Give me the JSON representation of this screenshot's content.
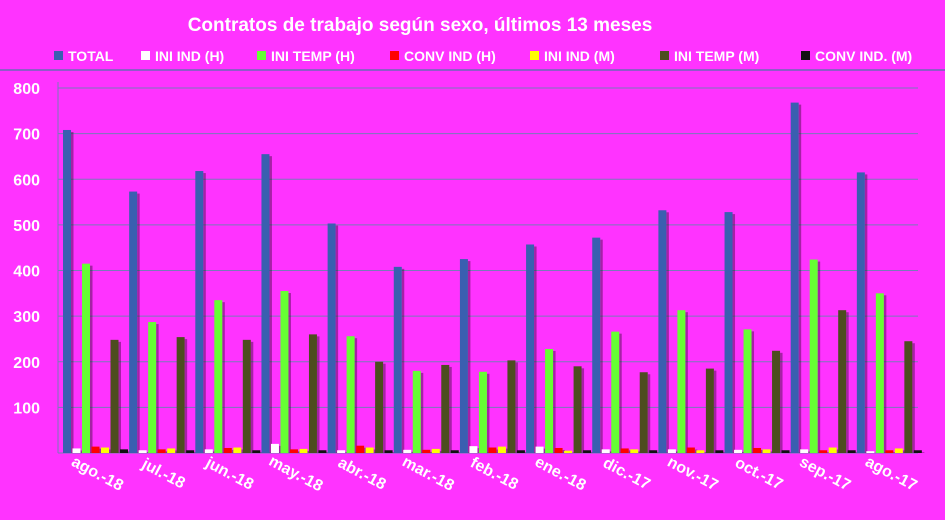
{
  "chart_data": {
    "type": "bar",
    "title": "Contratos de trabajo según sexo, últimos 13 meses",
    "xlabel": "",
    "ylabel": "",
    "ylim": [
      0,
      800
    ],
    "yticks": [
      100,
      200,
      300,
      400,
      500,
      600,
      700,
      800
    ],
    "grid": true,
    "legend_position": "top",
    "categories": [
      "ago.-18",
      "jul.-18",
      "jun.-18",
      "may.-18",
      "abr.-18",
      "mar.-18",
      "feb.-18",
      "ene.-18",
      "dic.-17",
      "nov.-17",
      "oct.-17",
      "sep.-17",
      "ago.-17"
    ],
    "series": [
      {
        "name": "TOTAL",
        "color": "#3a5fb0",
        "values": [
          708,
          573,
          618,
          655,
          503,
          408,
          425,
          457,
          472,
          532,
          528,
          768,
          615
        ]
      },
      {
        "name": "INI IND (H)",
        "color": "#ffffff",
        "values": [
          10,
          6,
          8,
          20,
          6,
          7,
          15,
          14,
          8,
          8,
          7,
          8,
          4
        ]
      },
      {
        "name": "INI TEMP (H)",
        "color": "#66ff33",
        "values": [
          415,
          287,
          335,
          355,
          256,
          180,
          178,
          228,
          266,
          313,
          271,
          424,
          350
        ]
      },
      {
        "name": "CONV IND (H)",
        "color": "#ff0000",
        "values": [
          14,
          8,
          11,
          8,
          16,
          7,
          12,
          11,
          10,
          12,
          11,
          6,
          6
        ]
      },
      {
        "name": "INI IND (M)",
        "color": "#ffff00",
        "values": [
          12,
          10,
          12,
          9,
          12,
          9,
          14,
          5,
          8,
          6,
          8,
          12,
          10
        ]
      },
      {
        "name": "INI TEMP  (M)",
        "color": "#4d4d1f",
        "values": [
          248,
          254,
          248,
          260,
          200,
          193,
          203,
          190,
          177,
          185,
          224,
          313,
          245
        ]
      },
      {
        "name": "CONV IND.  (M)",
        "color": "#111111",
        "values": [
          8,
          6,
          6,
          6,
          6,
          6,
          6,
          6,
          6,
          6,
          6,
          6,
          6
        ]
      }
    ]
  }
}
